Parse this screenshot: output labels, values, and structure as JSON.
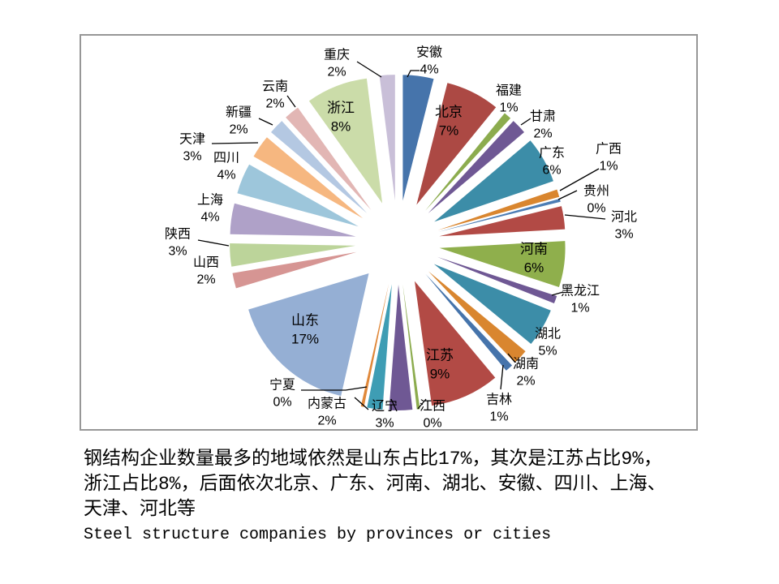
{
  "caption": {
    "line1": "钢结构企业数量最多的地域依然是山东占比17%，其次是江苏占比9%，",
    "line2": "浙江占比8%，后面依次北京、广东、河南、湖北、安徽、四川、上海、",
    "line3": "天津、河北等",
    "line4": "Steel structure companies by provinces or cities"
  },
  "chart_data": {
    "type": "pie",
    "title": "Steel structure companies by provinces or cities",
    "categories": [
      "安徽",
      "北京",
      "福建",
      "甘肃",
      "广东",
      "广西",
      "贵州",
      "河北",
      "河南",
      "黑龙江",
      "湖北",
      "湖南",
      "吉林",
      "江苏",
      "江西",
      "辽宁",
      "内蒙古",
      "宁夏",
      "山东",
      "山西",
      "陕西",
      "上海",
      "四川",
      "天津",
      "新疆",
      "云南",
      "浙江",
      "重庆"
    ],
    "values": [
      4,
      7,
      1,
      2,
      6,
      1,
      0,
      3,
      6,
      1,
      5,
      2,
      1,
      9,
      0,
      3,
      2,
      0,
      17,
      2,
      3,
      4,
      4,
      3,
      2,
      2,
      8,
      2
    ],
    "labels": [
      "4%",
      "7%",
      "1%",
      "2%",
      "6%",
      "1%",
      "0%",
      "3%",
      "6%",
      "1%",
      "5%",
      "2%",
      "1%",
      "9%",
      "0%",
      "3%",
      "2%",
      "0%",
      "17%",
      "2%",
      "3%",
      "4%",
      "4%",
      "3%",
      "2%",
      "2%",
      "8%",
      "2%"
    ],
    "colors": [
      "#4674AB",
      "#AC4944",
      "#8CAC4E",
      "#6F5894",
      "#3C8DA8",
      "#D9862F",
      "#4C7DB5",
      "#B24A45",
      "#8FAF4C",
      "#6F5894",
      "#3C8DA8",
      "#D9862F",
      "#4674AB",
      "#B24A45",
      "#8CAC4E",
      "#6F5894",
      "#3E9DB4",
      "#E0883A",
      "#95AFD4",
      "#D69593",
      "#BCD49A",
      "#AFA1C8",
      "#9DC6DB",
      "#F6B780",
      "#B4C8E2",
      "#E2B6B4",
      "#CBDCA9",
      "#C9BFD8"
    ],
    "layout": {
      "start_angle_deg": 0,
      "direction": "clockwise",
      "exploded": true,
      "label_style": "category name above percent",
      "inside_label_categories": [
        "北京",
        "河南",
        "江苏",
        "山东",
        "浙江"
      ],
      "legend": "none",
      "background": "#ffffff"
    }
  }
}
